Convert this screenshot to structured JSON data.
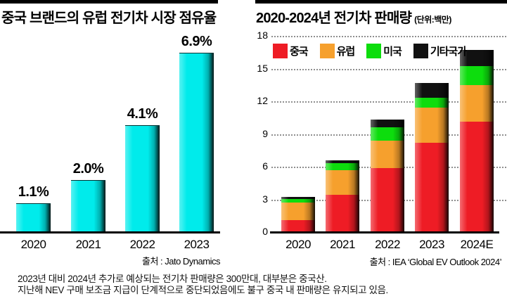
{
  "chart_data": [
    {
      "id": "china-brand-eu-ev-share",
      "type": "bar",
      "title": "중국 브랜드의 유럽 전기차 시장 점유율",
      "categories": [
        "2020",
        "2021",
        "2022",
        "2023"
      ],
      "values": [
        1.1,
        2.0,
        4.1,
        6.9
      ],
      "value_labels": [
        "1.1%",
        "2.0%",
        "4.1%",
        "6.9%"
      ],
      "unit": "%",
      "ylim": [
        0,
        7.5
      ],
      "grid": false,
      "bar_color": "#00ebeb",
      "source": "출처 : Jato Dynamics"
    },
    {
      "id": "global-ev-sales",
      "type": "stacked-bar",
      "title": "2020-2024년 전기차 판매량",
      "unit_label": "(단위:백만)",
      "categories": [
        "2020",
        "2021",
        "2022",
        "2023",
        "2024E"
      ],
      "series": [
        {
          "name": "중국",
          "color": "#ee1c25",
          "values": [
            1.1,
            3.4,
            5.9,
            8.2,
            10.1
          ]
        },
        {
          "name": "유럽",
          "color": "#f6a02d",
          "values": [
            1.6,
            2.3,
            2.5,
            3.2,
            3.4
          ]
        },
        {
          "name": "미국",
          "color": "#0ddd0d",
          "values": [
            0.3,
            0.6,
            1.2,
            0.9,
            1.7
          ]
        },
        {
          "name": "기타국가",
          "color": "#111111",
          "values": [
            0.2,
            0.3,
            0.7,
            1.4,
            1.5
          ]
        }
      ],
      "totals": [
        3.2,
        6.6,
        10.3,
        13.7,
        16.7
      ],
      "y_ticks": [
        18,
        15,
        12,
        9,
        6,
        3,
        0
      ],
      "ylim": [
        0,
        18
      ],
      "grid": true,
      "legend_position": "top",
      "source": "출처 : IEA ‘Global EV Outlook 2024’"
    }
  ],
  "footnote": {
    "lines": [
      "2023년 대비 2024년 추가로 예상되는 전기차 판매량은 300만대, 대부분은 중국산.",
      "지난해 NEV 구매 보조금 지급이 단계적으로 중단되었음에도 불구 중국 내 판매량은 유지되고 있음."
    ]
  }
}
